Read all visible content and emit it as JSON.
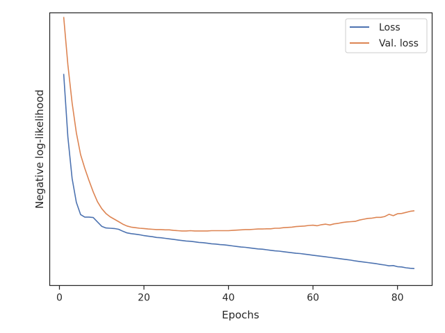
{
  "chart_data": {
    "type": "line",
    "title": "",
    "xlabel": "Epochs",
    "ylabel": "Negative log-likelihood",
    "xlim": [
      -2.3,
      88.2
    ],
    "ylim": [
      0.0,
      1.0
    ],
    "xticks": [
      0,
      20,
      40,
      60,
      80
    ],
    "xtick_labels": [
      "0",
      "20",
      "40",
      "60",
      "80"
    ],
    "y_tick_labels_shown": false,
    "grid": false,
    "legend": "top-right",
    "series": [
      {
        "name": "Loss",
        "color": "#4c72b0",
        "x": [
          1,
          2,
          3,
          4,
          5,
          6,
          7,
          8,
          9,
          10,
          11,
          12,
          13,
          14,
          15,
          16,
          17,
          18,
          19,
          20,
          21,
          22,
          23,
          24,
          25,
          26,
          27,
          28,
          29,
          30,
          31,
          32,
          33,
          34,
          35,
          36,
          37,
          38,
          39,
          40,
          41,
          42,
          43,
          44,
          45,
          46,
          47,
          48,
          49,
          50,
          51,
          52,
          53,
          54,
          55,
          56,
          57,
          58,
          59,
          60,
          61,
          62,
          63,
          64,
          65,
          66,
          67,
          68,
          69,
          70,
          71,
          72,
          73,
          74,
          75,
          76,
          77,
          78,
          79,
          80,
          81,
          82,
          83,
          84
        ],
        "y": [
          0.776,
          0.545,
          0.393,
          0.305,
          0.26,
          0.251,
          0.251,
          0.249,
          0.233,
          0.217,
          0.211,
          0.21,
          0.209,
          0.206,
          0.199,
          0.193,
          0.19,
          0.188,
          0.186,
          0.183,
          0.181,
          0.179,
          0.176,
          0.175,
          0.173,
          0.171,
          0.169,
          0.167,
          0.165,
          0.163,
          0.162,
          0.16,
          0.158,
          0.157,
          0.155,
          0.153,
          0.152,
          0.15,
          0.149,
          0.147,
          0.145,
          0.143,
          0.141,
          0.14,
          0.138,
          0.136,
          0.134,
          0.133,
          0.131,
          0.129,
          0.127,
          0.126,
          0.124,
          0.122,
          0.12,
          0.118,
          0.117,
          0.115,
          0.113,
          0.111,
          0.109,
          0.107,
          0.105,
          0.103,
          0.101,
          0.099,
          0.097,
          0.095,
          0.093,
          0.09,
          0.088,
          0.086,
          0.084,
          0.082,
          0.08,
          0.077,
          0.075,
          0.072,
          0.073,
          0.069,
          0.068,
          0.065,
          0.063,
          0.062
        ]
      },
      {
        "name": "Val. loss",
        "color": "#dd8452",
        "x": [
          1,
          2,
          3,
          4,
          5,
          6,
          7,
          8,
          9,
          10,
          11,
          12,
          13,
          14,
          15,
          16,
          17,
          18,
          19,
          20,
          21,
          22,
          23,
          24,
          25,
          26,
          27,
          28,
          29,
          30,
          31,
          32,
          33,
          34,
          35,
          36,
          37,
          38,
          39,
          40,
          41,
          42,
          43,
          44,
          45,
          46,
          47,
          48,
          49,
          50,
          51,
          52,
          53,
          54,
          55,
          56,
          57,
          58,
          59,
          60,
          61,
          62,
          63,
          64,
          65,
          66,
          67,
          68,
          69,
          70,
          71,
          72,
          73,
          74,
          75,
          76,
          77,
          78,
          79,
          80,
          81,
          82,
          83,
          84
        ],
        "y": [
          0.985,
          0.81,
          0.67,
          0.56,
          0.48,
          0.43,
          0.385,
          0.343,
          0.307,
          0.282,
          0.264,
          0.252,
          0.243,
          0.234,
          0.225,
          0.218,
          0.214,
          0.212,
          0.21,
          0.209,
          0.207,
          0.206,
          0.205,
          0.205,
          0.204,
          0.204,
          0.202,
          0.201,
          0.2,
          0.2,
          0.201,
          0.2,
          0.2,
          0.2,
          0.2,
          0.201,
          0.201,
          0.201,
          0.201,
          0.201,
          0.202,
          0.203,
          0.204,
          0.205,
          0.205,
          0.206,
          0.207,
          0.207,
          0.208,
          0.208,
          0.21,
          0.21,
          0.212,
          0.213,
          0.214,
          0.216,
          0.217,
          0.218,
          0.22,
          0.221,
          0.219,
          0.223,
          0.225,
          0.222,
          0.226,
          0.228,
          0.231,
          0.233,
          0.234,
          0.235,
          0.24,
          0.243,
          0.246,
          0.247,
          0.25,
          0.25,
          0.253,
          0.261,
          0.256,
          0.263,
          0.264,
          0.268,
          0.272,
          0.274
        ]
      }
    ]
  }
}
